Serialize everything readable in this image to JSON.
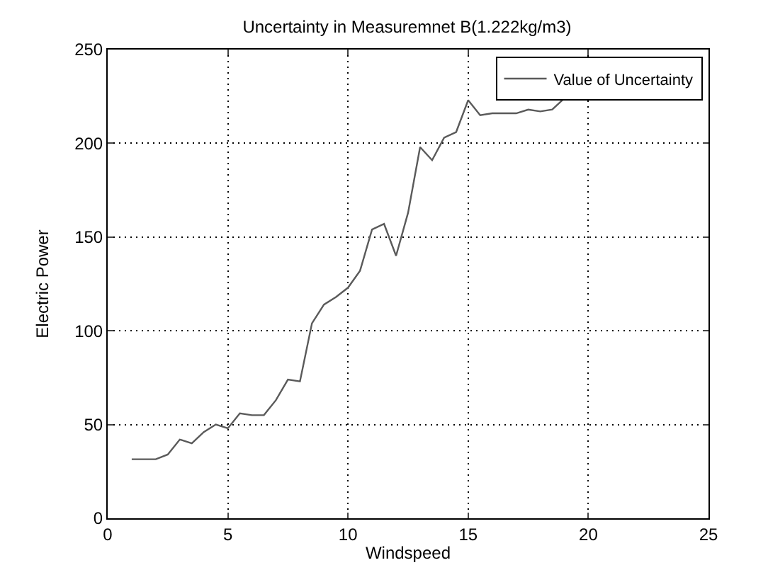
{
  "chart_data": {
    "type": "line",
    "title": "Uncertainty in Measuremnet B(1.222kg/m3)",
    "xlabel": "Windspeed",
    "ylabel": "Electric Power",
    "x": [
      1,
      1.5,
      2,
      2.5,
      3,
      3.5,
      4,
      4.5,
      5,
      5.5,
      6,
      6.5,
      7,
      7.5,
      8,
      8.5,
      9,
      9.5,
      10,
      10.5,
      11,
      11.5,
      12,
      12.5,
      13,
      13.5,
      14,
      14.5,
      15,
      15.5,
      16,
      16.5,
      17,
      17.5,
      18,
      18.5,
      19
    ],
    "series": [
      {
        "name": "Value of Uncertainty",
        "color": "#5a5a5a",
        "values": [
          31.5,
          31.5,
          31.5,
          34,
          42,
          40,
          46,
          50,
          48,
          56,
          55,
          55,
          63,
          74,
          73,
          104,
          114,
          118,
          123,
          132,
          154,
          157,
          140,
          163,
          198,
          191,
          203,
          206,
          223,
          215,
          216,
          216,
          216,
          218,
          217,
          218,
          224
        ]
      }
    ],
    "xlim": [
      0,
      25
    ],
    "xticks": [
      0,
      5,
      10,
      15,
      20,
      25
    ],
    "ylim": [
      0,
      250
    ],
    "yticks": [
      0,
      50,
      100,
      150,
      200,
      250
    ],
    "grid": true,
    "legend": "top right",
    "marker": "none",
    "line_style": "solid"
  }
}
